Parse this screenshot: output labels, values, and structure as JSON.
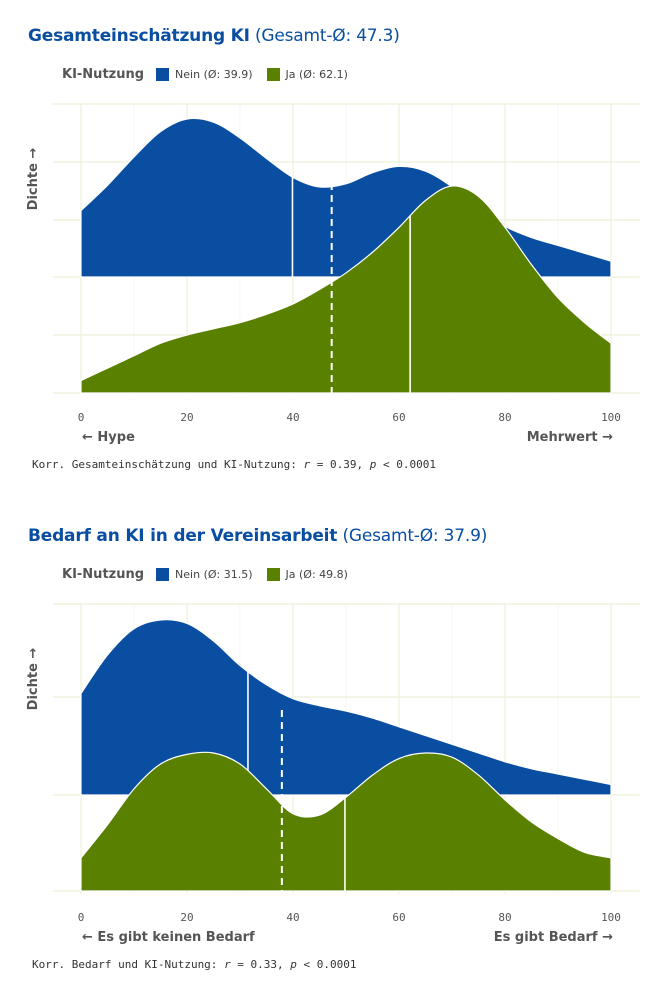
{
  "chart_data": [
    {
      "type": "area",
      "title_bold": "Gesamteinschätzung KI",
      "title_light": "(Gesamt-Ø: 47.3)",
      "overall_mean": 47.3,
      "legend_title": "KI-Nutzung",
      "ylabel": "Dichte →",
      "xlabel_left": "← Hype",
      "xlabel_right": "Mehrwert →",
      "xlim": [
        0,
        100
      ],
      "xticks": [
        "0",
        "20",
        "40",
        "60",
        "80",
        "100"
      ],
      "note": {
        "prefix": "Korr. Gesamteinschätzung und KI-Nutzung: ",
        "r_label": "r",
        "r_value": " = 0.39, ",
        "p_label": "p",
        "p_value": " < 0.0001"
      },
      "series": [
        {
          "name": "Nein",
          "legend_label": "Nein (Ø: 39.9)",
          "color": "#0a4ea1",
          "mean": 39.9,
          "x": [
            0,
            5,
            10,
            15,
            20,
            25,
            30,
            35,
            40,
            45,
            50,
            55,
            60,
            65,
            70,
            75,
            80,
            85,
            90,
            95,
            100
          ],
          "y": [
            0.42,
            0.58,
            0.76,
            0.92,
            1.0,
            0.98,
            0.88,
            0.75,
            0.63,
            0.57,
            0.59,
            0.66,
            0.7,
            0.67,
            0.57,
            0.42,
            0.32,
            0.25,
            0.2,
            0.15,
            0.1
          ]
        },
        {
          "name": "Ja",
          "legend_label": "Ja (Ø: 62.1)",
          "color": "#5a8000",
          "mean": 62.1,
          "x": [
            0,
            5,
            10,
            15,
            20,
            25,
            30,
            35,
            40,
            45,
            50,
            55,
            60,
            65,
            70,
            75,
            80,
            85,
            90,
            95,
            100
          ],
          "y": [
            0.06,
            0.12,
            0.18,
            0.24,
            0.28,
            0.31,
            0.34,
            0.38,
            0.43,
            0.5,
            0.58,
            0.68,
            0.8,
            0.93,
            1.0,
            0.95,
            0.8,
            0.62,
            0.46,
            0.34,
            0.24
          ]
        }
      ]
    },
    {
      "type": "area",
      "title_bold": "Bedarf an KI in der Vereinsarbeit",
      "title_light": "(Gesamt-Ø: 37.9)",
      "overall_mean": 37.9,
      "legend_title": "KI-Nutzung",
      "ylabel": "Dichte →",
      "xlabel_left": "← Es gibt keinen Bedarf",
      "xlabel_right": "Es gibt Bedarf →",
      "xlim": [
        0,
        100
      ],
      "xticks": [
        "0",
        "20",
        "40",
        "60",
        "80",
        "100"
      ],
      "note": {
        "prefix": "Korr. Bedarf und KI-Nutzung: ",
        "r_label": "r",
        "r_value": " = 0.33, ",
        "p_label": "p",
        "p_value": " < 0.0001"
      },
      "series": [
        {
          "name": "Nein",
          "legend_label": "Nein (Ø: 31.5)",
          "color": "#0a4ea1",
          "mean": 31.5,
          "x": [
            0,
            5,
            10,
            15,
            20,
            25,
            30,
            35,
            40,
            45,
            50,
            55,
            60,
            65,
            70,
            75,
            80,
            85,
            90,
            95,
            100
          ],
          "y": [
            0.58,
            0.8,
            0.95,
            1.0,
            0.98,
            0.88,
            0.74,
            0.63,
            0.55,
            0.51,
            0.48,
            0.44,
            0.39,
            0.34,
            0.29,
            0.24,
            0.19,
            0.15,
            0.12,
            0.09,
            0.06
          ]
        },
        {
          "name": "Ja",
          "legend_label": "Ja (Ø: 49.8)",
          "color": "#5a8000",
          "mean": 49.8,
          "x": [
            0,
            5,
            10,
            15,
            20,
            25,
            30,
            35,
            40,
            45,
            50,
            55,
            60,
            65,
            70,
            75,
            80,
            85,
            90,
            95,
            100
          ],
          "y": [
            0.24,
            0.48,
            0.74,
            0.92,
            0.99,
            1.0,
            0.92,
            0.74,
            0.56,
            0.55,
            0.68,
            0.84,
            0.96,
            1.0,
            0.97,
            0.84,
            0.66,
            0.5,
            0.38,
            0.28,
            0.24
          ]
        }
      ]
    }
  ]
}
